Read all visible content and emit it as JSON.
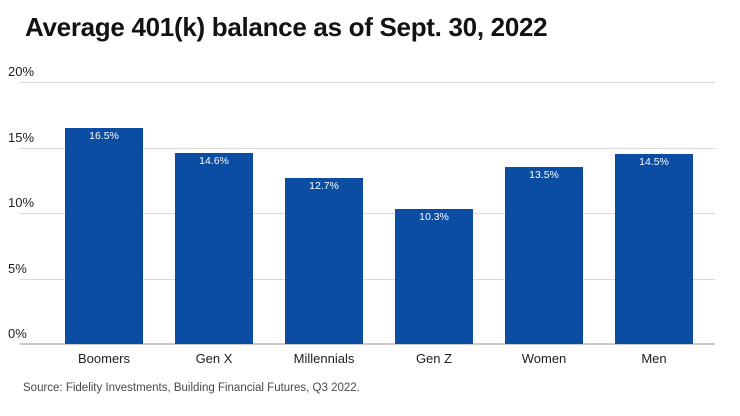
{
  "source": "Source: Fidelity Investments, Building Financial Futures, Q3 2022.",
  "colors": {
    "bar": "#0b4da2",
    "gridline": "#dadada",
    "baseline": "#c9c9c9",
    "title_text": "#121212",
    "axis_text": "#1d1d1d",
    "value_label_text": "#ffffff",
    "source_text": "#494949",
    "background": "#ffffff"
  },
  "chart_data": {
    "type": "bar",
    "title": "Average 401(k) balance as of Sept. 30, 2022",
    "categories": [
      "Boomers",
      "Gen X",
      "Millennials",
      "Gen Z",
      "Women",
      "Men"
    ],
    "values": [
      16.5,
      14.6,
      12.7,
      10.3,
      13.5,
      14.5
    ],
    "value_labels": [
      "16.5%",
      "14.6%",
      "12.7%",
      "10.3%",
      "13.5%",
      "14.5%"
    ],
    "xlabel": "",
    "ylabel": "",
    "ylim": [
      0,
      20
    ],
    "yticks": [
      0,
      5,
      10,
      15,
      20
    ],
    "ytick_labels": [
      "0%",
      "5%",
      "10%",
      "15%",
      "20%"
    ],
    "grid": true,
    "legend": "none"
  }
}
